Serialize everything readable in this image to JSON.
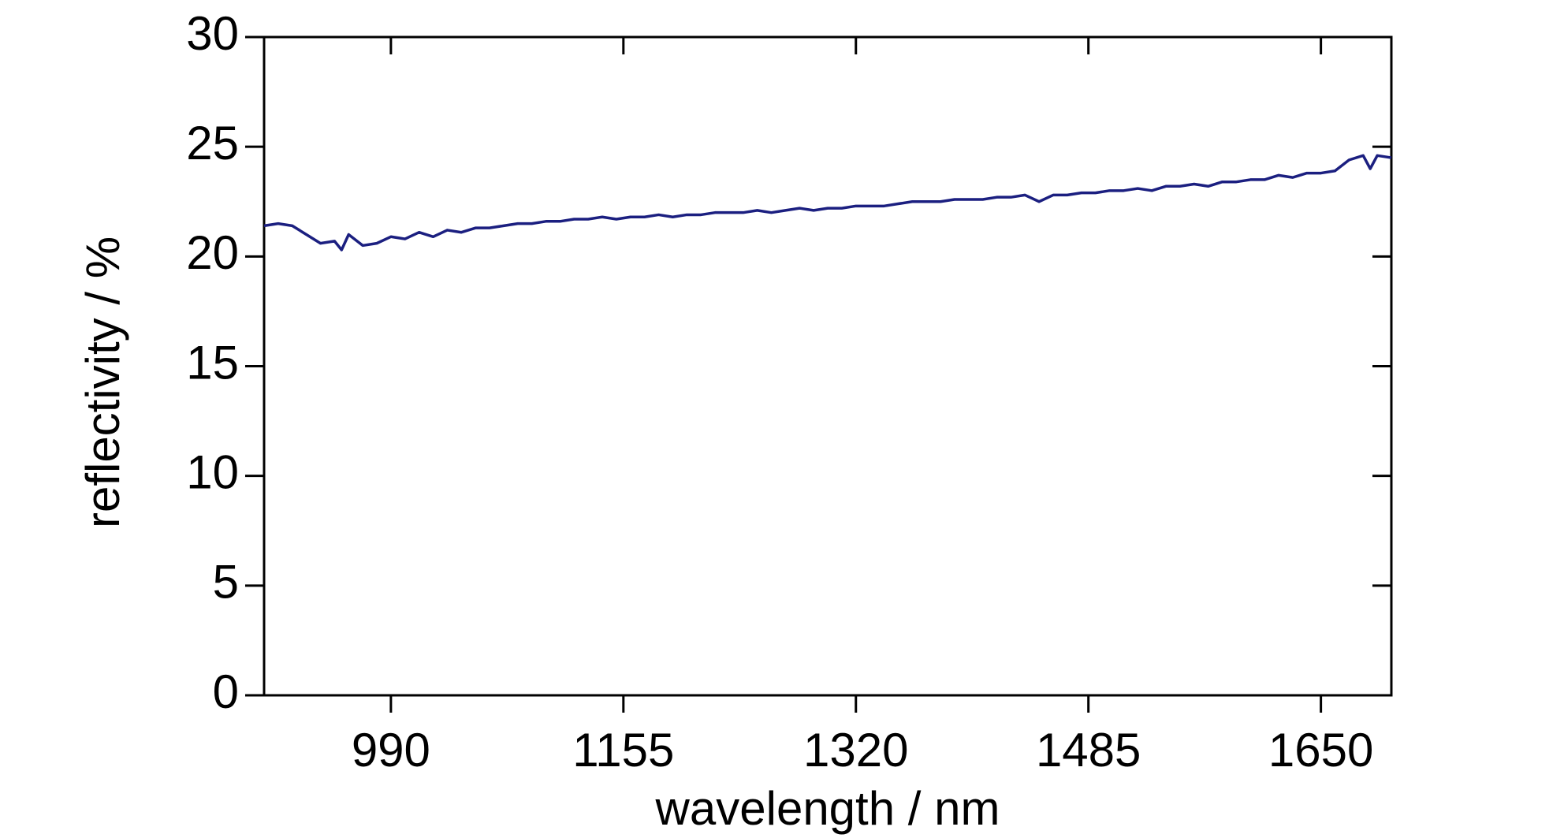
{
  "chart_data": {
    "type": "line",
    "x_label": "wavelength / nm",
    "y_label": "reflectivity / %",
    "x": [
      900,
      910,
      920,
      930,
      940,
      950,
      955,
      960,
      970,
      980,
      990,
      1000,
      1010,
      1020,
      1030,
      1040,
      1050,
      1060,
      1070,
      1080,
      1090,
      1100,
      1110,
      1120,
      1130,
      1140,
      1150,
      1160,
      1170,
      1180,
      1190,
      1200,
      1210,
      1220,
      1230,
      1240,
      1250,
      1260,
      1270,
      1280,
      1290,
      1300,
      1310,
      1320,
      1330,
      1340,
      1350,
      1360,
      1370,
      1380,
      1390,
      1400,
      1410,
      1420,
      1430,
      1440,
      1450,
      1460,
      1470,
      1480,
      1490,
      1500,
      1510,
      1520,
      1530,
      1540,
      1550,
      1560,
      1570,
      1580,
      1590,
      1600,
      1610,
      1620,
      1630,
      1640,
      1650,
      1660,
      1670,
      1680,
      1685,
      1690,
      1700
    ],
    "series": [
      {
        "name": "reflectivity",
        "color": "#1b1f80",
        "values": [
          21.4,
          21.5,
          21.4,
          21.0,
          20.6,
          20.7,
          20.3,
          21.0,
          20.5,
          20.6,
          20.9,
          20.8,
          21.1,
          20.9,
          21.2,
          21.1,
          21.3,
          21.3,
          21.4,
          21.5,
          21.5,
          21.6,
          21.6,
          21.7,
          21.7,
          21.8,
          21.7,
          21.8,
          21.8,
          21.9,
          21.8,
          21.9,
          21.9,
          22.0,
          22.0,
          22.0,
          22.1,
          22.0,
          22.1,
          22.2,
          22.1,
          22.2,
          22.2,
          22.3,
          22.3,
          22.3,
          22.4,
          22.5,
          22.5,
          22.5,
          22.6,
          22.6,
          22.6,
          22.7,
          22.7,
          22.8,
          22.5,
          22.8,
          22.8,
          22.9,
          22.9,
          23.0,
          23.0,
          23.1,
          23.0,
          23.2,
          23.2,
          23.3,
          23.2,
          23.4,
          23.4,
          23.5,
          23.5,
          23.7,
          23.6,
          23.8,
          23.8,
          23.9,
          24.4,
          24.6,
          24.0,
          24.6,
          24.5
        ]
      }
    ],
    "xlim": [
      900,
      1700
    ],
    "xticks": [
      990,
      1155,
      1320,
      1485,
      1650
    ],
    "ylim": [
      0,
      30
    ],
    "yticks": [
      0,
      5,
      10,
      15,
      20,
      25,
      30
    ]
  }
}
